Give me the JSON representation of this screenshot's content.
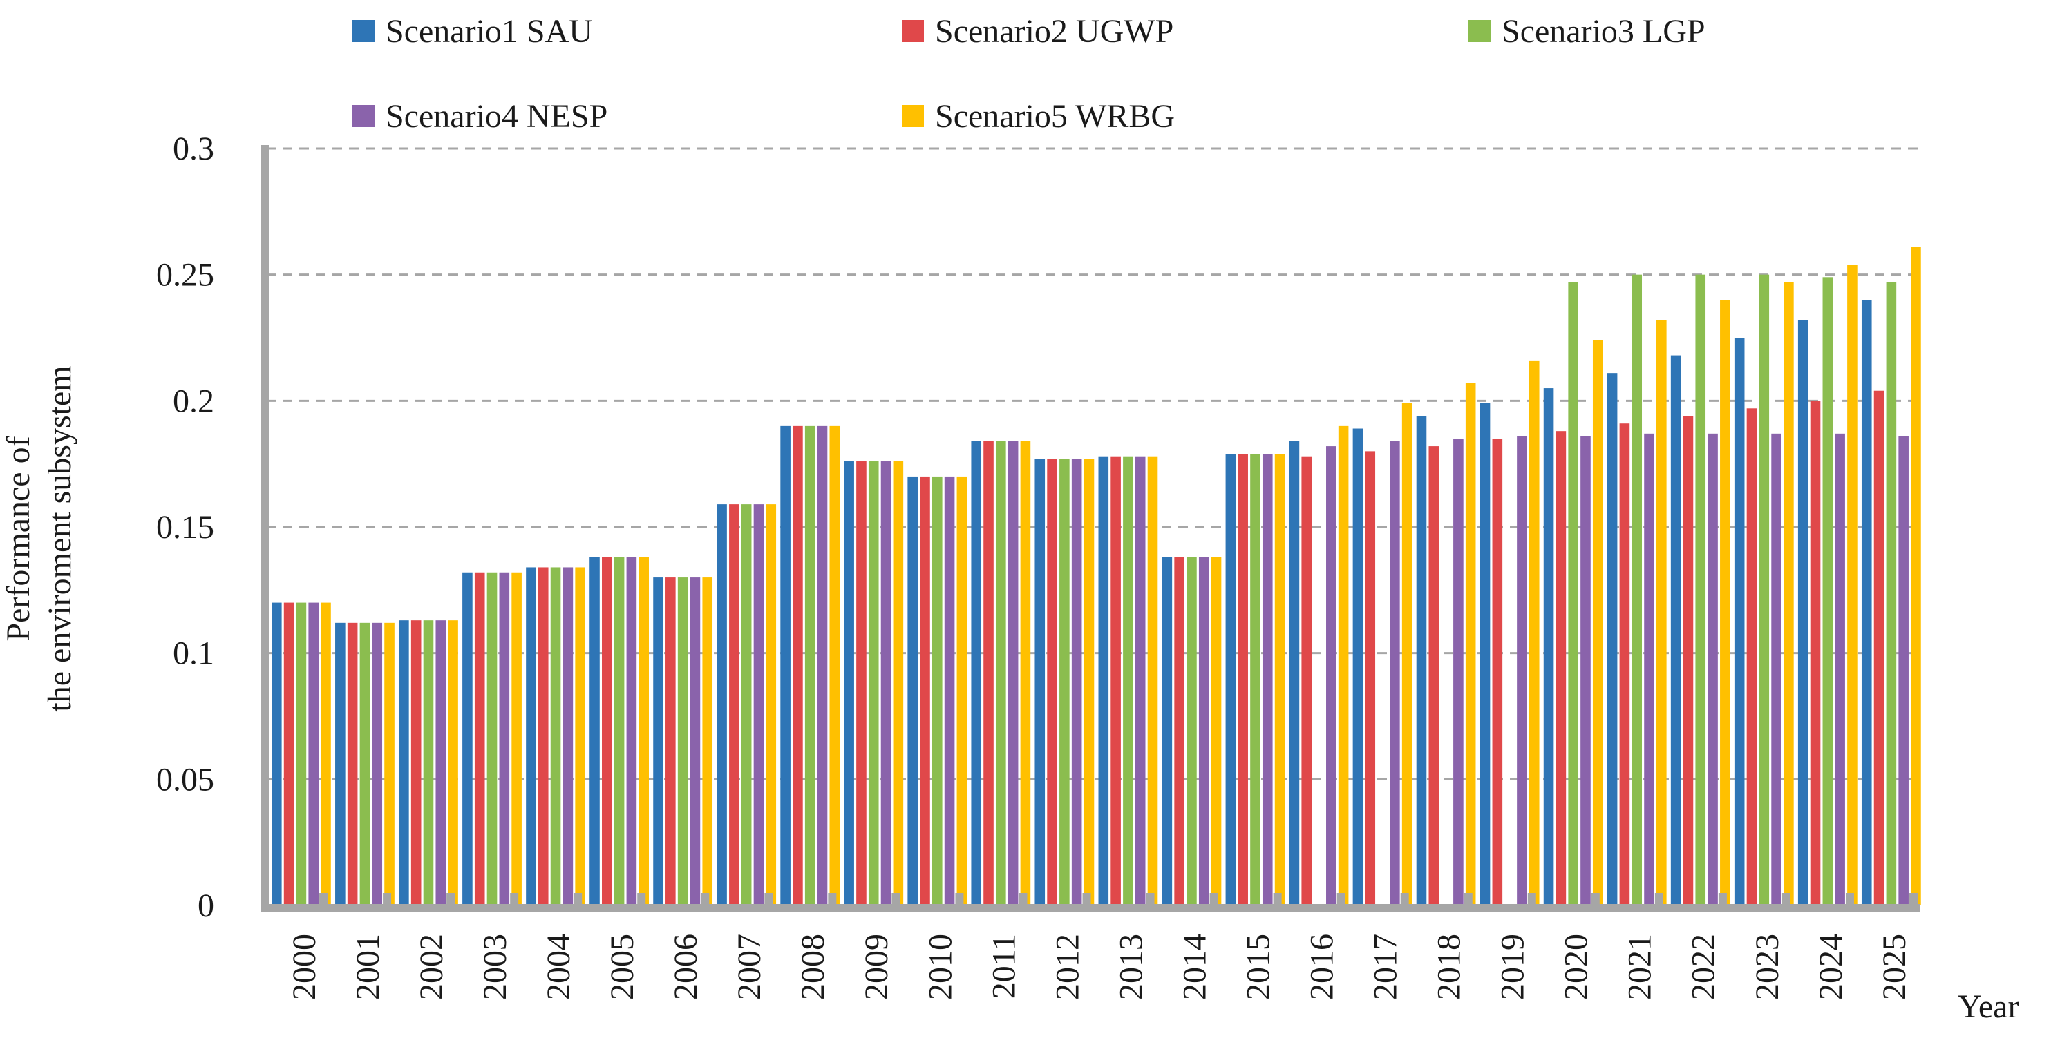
{
  "chart_data": {
    "type": "bar",
    "title": "",
    "xlabel": "Year",
    "ylabel_lines": [
      "Performance of",
      "the enviroment subsystem"
    ],
    "ylim": [
      0,
      0.3
    ],
    "y_ticks": [
      "0",
      "0.05",
      "0.1",
      "0.15",
      "0.2",
      "0.25",
      "0.3"
    ],
    "y_tick_values": [
      0,
      0.05,
      0.1,
      0.15,
      0.2,
      0.25,
      0.3
    ],
    "grid": true,
    "legend_position": "top",
    "categories": [
      "2000",
      "2001",
      "2002",
      "2003",
      "2004",
      "2005",
      "2006",
      "2007",
      "2008",
      "2009",
      "2010",
      "2011",
      "2012",
      "2013",
      "2014",
      "2015",
      "2016",
      "2017",
      "2018",
      "2019",
      "2020",
      "2021",
      "2022",
      "2023",
      "2024",
      "2025"
    ],
    "series": [
      {
        "name": "Scenario1 SAU",
        "color": "#2e75b6",
        "values": [
          0.12,
          0.112,
          0.113,
          0.132,
          0.134,
          0.138,
          0.13,
          0.159,
          0.19,
          0.176,
          0.17,
          0.184,
          0.177,
          0.178,
          0.138,
          0.179,
          0.184,
          0.189,
          0.194,
          0.199,
          0.205,
          0.211,
          0.218,
          0.225,
          0.232,
          0.24
        ]
      },
      {
        "name": "Scenario2 UGWP",
        "color": "#e0484a",
        "values": [
          0.12,
          0.112,
          0.113,
          0.132,
          0.134,
          0.138,
          0.13,
          0.159,
          0.19,
          0.176,
          0.17,
          0.184,
          0.177,
          0.178,
          0.138,
          0.179,
          0.178,
          0.18,
          0.182,
          0.185,
          0.188,
          0.191,
          0.194,
          0.197,
          0.2,
          0.204
        ]
      },
      {
        "name": "Scenario3 LGP",
        "color": "#8bbd4f",
        "values": [
          0.12,
          0.112,
          0.113,
          0.132,
          0.134,
          0.138,
          0.13,
          0.159,
          0.19,
          0.176,
          0.17,
          0.184,
          0.177,
          0.178,
          0.138,
          0.179,
          0,
          0,
          0,
          0,
          0.247,
          0.25,
          0.25,
          0.25,
          0.249,
          0.247
        ]
      },
      {
        "name": "Scenario4 NESP",
        "color": "#8a63ab",
        "values": [
          0.12,
          0.112,
          0.113,
          0.132,
          0.134,
          0.138,
          0.13,
          0.159,
          0.19,
          0.176,
          0.17,
          0.184,
          0.177,
          0.178,
          0.138,
          0.179,
          0.182,
          0.184,
          0.185,
          0.186,
          0.186,
          0.187,
          0.187,
          0.187,
          0.187,
          0.186
        ]
      },
      {
        "name": "Scenario5 WRBG",
        "color": "#ffc000",
        "values": [
          0.12,
          0.112,
          0.113,
          0.132,
          0.134,
          0.138,
          0.13,
          0.159,
          0.19,
          0.176,
          0.17,
          0.184,
          0.177,
          0.178,
          0.138,
          0.179,
          0.19,
          0.199,
          0.207,
          0.216,
          0.224,
          0.232,
          0.24,
          0.247,
          0.254,
          0.261
        ]
      }
    ],
    "axis_color": "#a6a6a6",
    "grid_color": "#a6a6a6"
  }
}
